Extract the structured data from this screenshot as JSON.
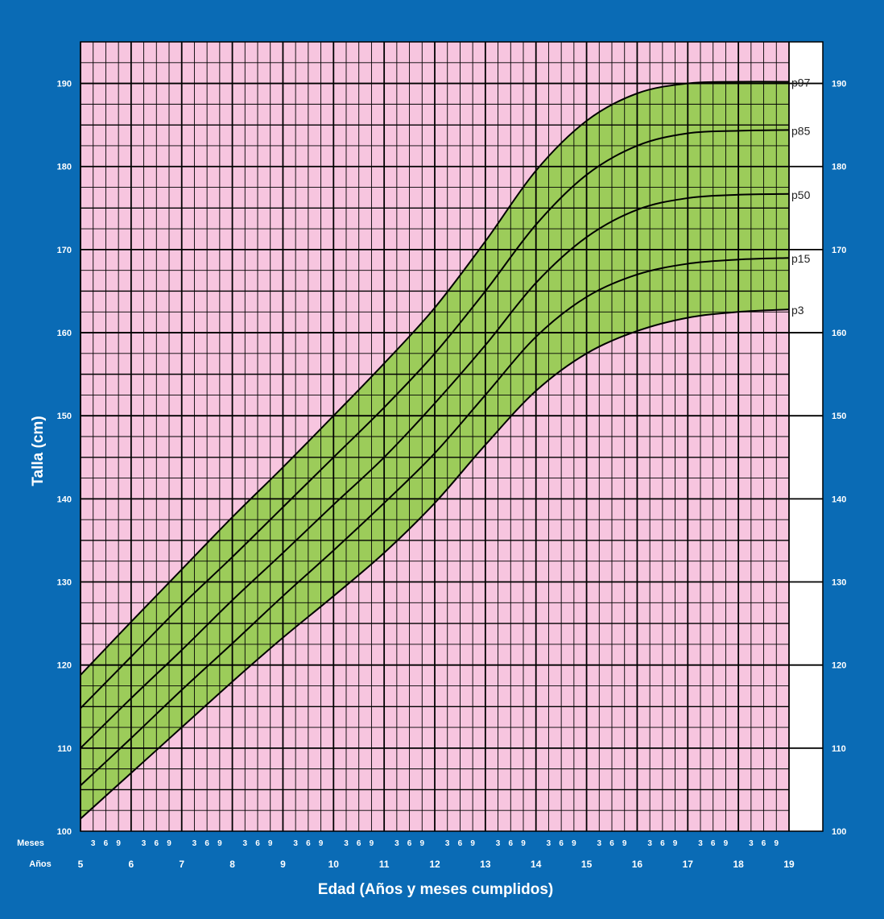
{
  "chart_data": {
    "type": "line",
    "title": "",
    "xlabel": "Edad (Años y meses cumplidos)",
    "ylabel": "Talla (cm)",
    "x_row_labels": {
      "months": "Meses",
      "years": "Años"
    },
    "month_ticks": [
      "3",
      "6",
      "9"
    ],
    "xlim": [
      5,
      19
    ],
    "ylim": [
      100,
      195
    ],
    "x_ticks": [
      5,
      6,
      7,
      8,
      9,
      10,
      11,
      12,
      13,
      14,
      15,
      16,
      17,
      18,
      19
    ],
    "y_ticks": [
      100,
      110,
      120,
      130,
      140,
      150,
      160,
      170,
      180,
      190
    ],
    "x_tick_labels": [
      "5",
      "6",
      "7",
      "8",
      "9",
      "10",
      "11",
      "12",
      "13",
      "14",
      "15",
      "16",
      "17",
      "18",
      "19"
    ],
    "y_tick_labels": [
      "100",
      "110",
      "120",
      "130",
      "140",
      "150",
      "160",
      "170",
      "180",
      "190"
    ],
    "grid": true,
    "legend": "right-end labels",
    "colors": {
      "frame": "#0a6bb5",
      "plot_background": "#f7c5df",
      "band_fill": "#9ccc5a",
      "grid": "#000000",
      "curve": "#000000",
      "axis_text": "#ffffff"
    },
    "series": [
      {
        "name": "p97",
        "x": [
          5,
          6,
          7,
          8,
          9,
          10,
          11,
          12,
          13,
          14,
          15,
          16,
          17,
          18,
          19
        ],
        "y": [
          118.8,
          125.2,
          131.5,
          137.8,
          143.8,
          150.0,
          156.3,
          163.0,
          171.0,
          179.5,
          185.5,
          188.8,
          190.0,
          190.2,
          190.2
        ]
      },
      {
        "name": "p85",
        "x": [
          5,
          6,
          7,
          8,
          9,
          10,
          11,
          12,
          13,
          14,
          15,
          16,
          17,
          18,
          19
        ],
        "y": [
          114.8,
          121.0,
          127.2,
          133.0,
          139.0,
          145.0,
          151.0,
          157.5,
          165.0,
          173.0,
          179.0,
          182.5,
          184.0,
          184.3,
          184.4
        ]
      },
      {
        "name": "p50",
        "x": [
          5,
          6,
          7,
          8,
          9,
          10,
          11,
          12,
          13,
          14,
          15,
          16,
          17,
          18,
          19
        ],
        "y": [
          110.0,
          116.0,
          121.8,
          127.8,
          133.5,
          139.3,
          145.0,
          151.5,
          158.5,
          166.0,
          171.5,
          174.8,
          176.2,
          176.6,
          176.7
        ]
      },
      {
        "name": "p15",
        "x": [
          5,
          6,
          7,
          8,
          9,
          10,
          11,
          12,
          13,
          14,
          15,
          16,
          17,
          18,
          19
        ],
        "y": [
          105.5,
          111.2,
          117.0,
          122.6,
          128.3,
          133.8,
          139.5,
          145.5,
          152.5,
          159.5,
          164.3,
          167.0,
          168.3,
          168.8,
          169.0
        ]
      },
      {
        "name": "p3",
        "x": [
          5,
          6,
          7,
          8,
          9,
          10,
          11,
          12,
          13,
          14,
          15,
          16,
          17,
          18,
          19
        ],
        "y": [
          101.5,
          107.0,
          112.5,
          118.0,
          123.3,
          128.3,
          133.5,
          139.5,
          146.5,
          153.0,
          157.5,
          160.2,
          161.8,
          162.5,
          162.8
        ]
      }
    ]
  }
}
